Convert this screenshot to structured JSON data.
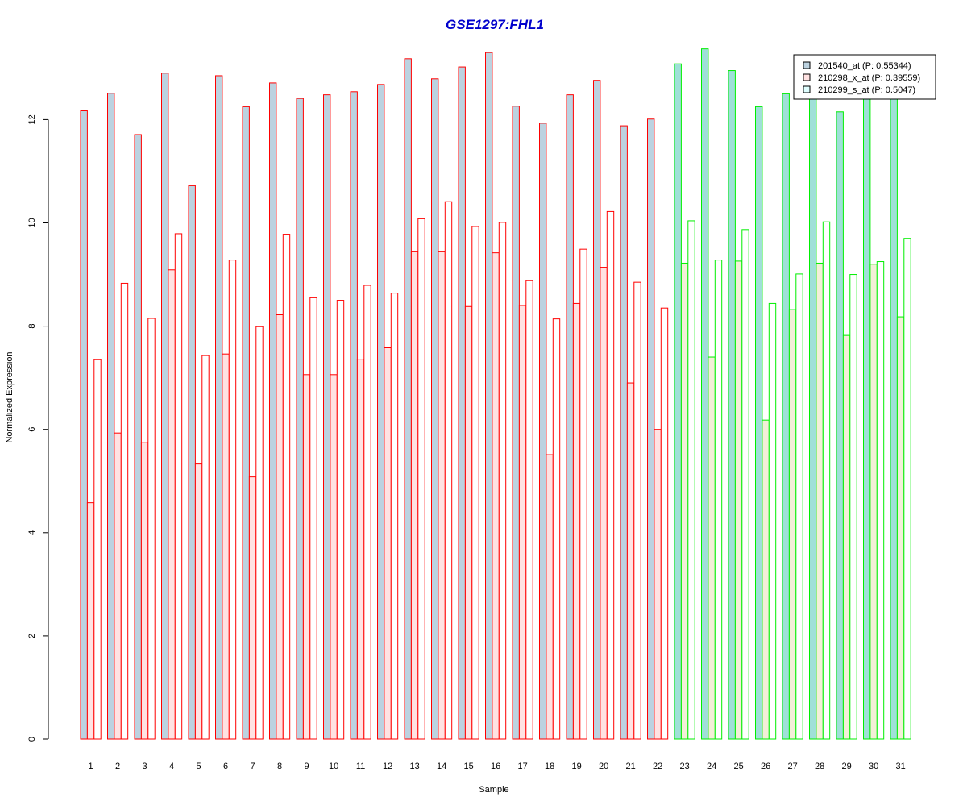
{
  "chart_data": {
    "type": "bar",
    "title": "GSE1297:FHL1",
    "xlabel": "Sample",
    "ylabel": "Normalized Expression",
    "ylim": [
      0,
      13.3
    ],
    "yticks": [
      "0",
      "2",
      "4",
      "6",
      "8",
      "10",
      "12"
    ],
    "categories": [
      "1",
      "2",
      "3",
      "4",
      "5",
      "6",
      "7",
      "8",
      "9",
      "10",
      "11",
      "12",
      "13",
      "14",
      "15",
      "16",
      "17",
      "18",
      "19",
      "20",
      "21",
      "22",
      "23",
      "24",
      "25",
      "26",
      "27",
      "28",
      "29",
      "30",
      "31"
    ],
    "group_border_colors": [
      "#ff0000",
      "#ff0000",
      "#ff0000",
      "#ff0000",
      "#ff0000",
      "#ff0000",
      "#ff0000",
      "#ff0000",
      "#ff0000",
      "#ff0000",
      "#ff0000",
      "#ff0000",
      "#ff0000",
      "#ff0000",
      "#ff0000",
      "#ff0000",
      "#ff0000",
      "#ff0000",
      "#ff0000",
      "#ff0000",
      "#ff0000",
      "#ff0000",
      "#00ee00",
      "#00ee00",
      "#00ee00",
      "#00ee00",
      "#00ee00",
      "#00ee00",
      "#00ee00",
      "#00ee00",
      "#00ee00"
    ],
    "series": [
      {
        "name": "201540_at (P: 0.55344)",
        "fill": "#bcd2e0",
        "fill_alt": "#9fe0d8",
        "values": [
          12.17,
          12.51,
          11.71,
          12.9,
          10.72,
          12.85,
          12.25,
          12.71,
          12.41,
          12.48,
          12.54,
          12.68,
          13.18,
          12.79,
          13.02,
          13.3,
          12.26,
          11.93,
          12.48,
          12.76,
          11.88,
          12.01,
          13.08,
          13.37,
          12.95,
          12.25,
          12.5,
          12.45,
          12.15,
          12.4,
          12.45
        ]
      },
      {
        "name": "210298_x_at (P: 0.39559)",
        "fill": "#ffe2e2",
        "fill_alt": "#f3efd8",
        "values": [
          4.58,
          5.93,
          5.75,
          9.09,
          5.33,
          7.46,
          5.08,
          8.22,
          7.06,
          7.06,
          7.36,
          7.58,
          9.44,
          9.44,
          8.38,
          9.42,
          8.4,
          5.51,
          8.44,
          9.14,
          6.9,
          6.0,
          9.22,
          7.4,
          9.26,
          6.18,
          8.32,
          9.22,
          7.82,
          9.2,
          8.18
        ]
      },
      {
        "name": "210299_s_at (P: 0.5047)",
        "fill": "#ffffff",
        "fill_alt": "#ffffff",
        "values": [
          7.35,
          8.83,
          8.15,
          9.79,
          7.43,
          9.28,
          7.99,
          9.78,
          8.55,
          8.5,
          8.79,
          8.64,
          10.08,
          10.41,
          9.93,
          10.01,
          8.88,
          8.14,
          9.49,
          10.22,
          8.85,
          8.35,
          10.04,
          9.28,
          9.87,
          8.44,
          9.01,
          10.02,
          9.0,
          9.25,
          9.7
        ]
      }
    ],
    "legend_placement": "top-right",
    "grid": false
  }
}
